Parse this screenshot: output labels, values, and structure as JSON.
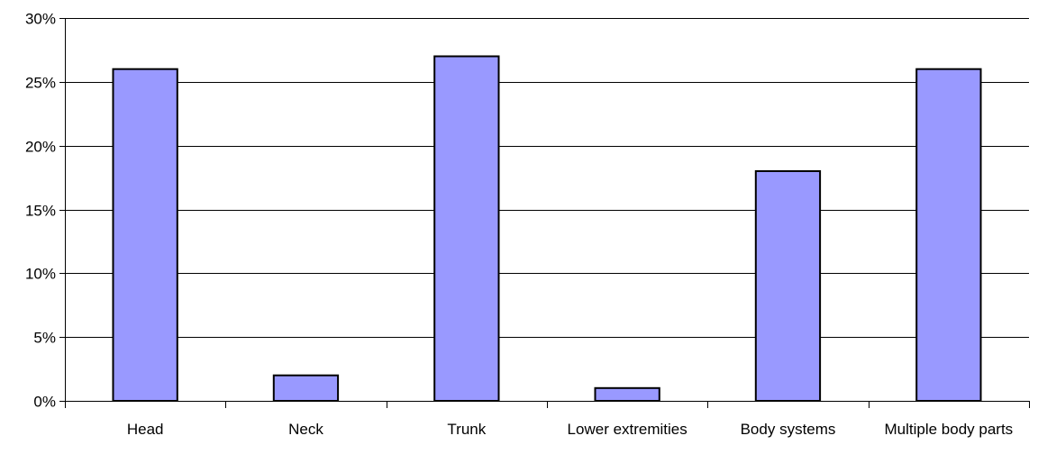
{
  "chart_data": {
    "type": "bar",
    "categories": [
      "Head",
      "Neck",
      "Trunk",
      "Lower extremities",
      "Body systems",
      "Multiple body parts"
    ],
    "values": [
      26,
      2,
      27,
      1,
      18,
      26
    ],
    "value_unit": "%",
    "ylim": [
      0,
      30
    ],
    "yticks": [
      0,
      5,
      10,
      15,
      20,
      25,
      30
    ],
    "ytick_labels": [
      "0%",
      "5%",
      "10%",
      "15%",
      "20%",
      "25%",
      "30%"
    ],
    "grid": true,
    "legend": "none",
    "colors": {
      "bar_fill": "#9999ff",
      "bar_stroke": "#000000",
      "grid": "#000000",
      "axis": "#000000"
    }
  }
}
